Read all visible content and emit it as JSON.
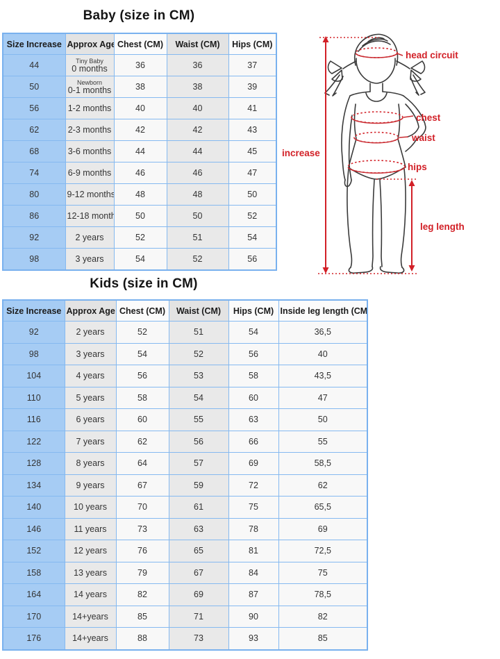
{
  "baby": {
    "title": "Baby (size in CM)",
    "headers": [
      "Size Increase",
      "Approx Age",
      "Chest (CM)",
      "Waist (CM)",
      "Hips (CM)"
    ],
    "rows": [
      {
        "size": "44",
        "age_small": "Tiny Baby",
        "age": "0 months",
        "chest": "36",
        "waist": "36",
        "hips": "37"
      },
      {
        "size": "50",
        "age_small": "Newborn",
        "age": "0-1 months",
        "chest": "38",
        "waist": "38",
        "hips": "39"
      },
      {
        "size": "56",
        "age_small": "",
        "age": "1-2 months",
        "chest": "40",
        "waist": "40",
        "hips": "41"
      },
      {
        "size": "62",
        "age_small": "",
        "age": "2-3 months",
        "chest": "42",
        "waist": "42",
        "hips": "43"
      },
      {
        "size": "68",
        "age_small": "",
        "age": "3-6 months",
        "chest": "44",
        "waist": "44",
        "hips": "45"
      },
      {
        "size": "74",
        "age_small": "",
        "age": "6-9 months",
        "chest": "46",
        "waist": "46",
        "hips": "47"
      },
      {
        "size": "80",
        "age_small": "",
        "age": "9-12 months",
        "chest": "48",
        "waist": "48",
        "hips": "50"
      },
      {
        "size": "86",
        "age_small": "",
        "age": "12-18 months",
        "chest": "50",
        "waist": "50",
        "hips": "52"
      },
      {
        "size": "92",
        "age_small": "",
        "age": "2 years",
        "chest": "52",
        "waist": "51",
        "hips": "54"
      },
      {
        "size": "98",
        "age_small": "",
        "age": "3 years",
        "chest": "54",
        "waist": "52",
        "hips": "56"
      }
    ]
  },
  "kids": {
    "title": "Kids (size in CM)",
    "headers": [
      "Size Increase",
      "Approx Age",
      "Chest (CM)",
      "Waist (CM)",
      "Hips (CM)",
      "Inside leg length (CM)"
    ],
    "rows": [
      {
        "size": "92",
        "age": "2 years",
        "chest": "52",
        "waist": "51",
        "hips": "54",
        "inside_leg": "36,5"
      },
      {
        "size": "98",
        "age": "3 years",
        "chest": "54",
        "waist": "52",
        "hips": "56",
        "inside_leg": "40"
      },
      {
        "size": "104",
        "age": "4 years",
        "chest": "56",
        "waist": "53",
        "hips": "58",
        "inside_leg": "43,5"
      },
      {
        "size": "110",
        "age": "5 years",
        "chest": "58",
        "waist": "54",
        "hips": "60",
        "inside_leg": "47"
      },
      {
        "size": "116",
        "age": "6 years",
        "chest": "60",
        "waist": "55",
        "hips": "63",
        "inside_leg": "50"
      },
      {
        "size": "122",
        "age": "7 years",
        "chest": "62",
        "waist": "56",
        "hips": "66",
        "inside_leg": "55"
      },
      {
        "size": "128",
        "age": "8 years",
        "chest": "64",
        "waist": "57",
        "hips": "69",
        "inside_leg": "58,5"
      },
      {
        "size": "134",
        "age": "9 years",
        "chest": "67",
        "waist": "59",
        "hips": "72",
        "inside_leg": "62"
      },
      {
        "size": "140",
        "age": "10 years",
        "chest": "70",
        "waist": "61",
        "hips": "75",
        "inside_leg": "65,5"
      },
      {
        "size": "146",
        "age": "11 years",
        "chest": "73",
        "waist": "63",
        "hips": "78",
        "inside_leg": "69"
      },
      {
        "size": "152",
        "age": "12 years",
        "chest": "76",
        "waist": "65",
        "hips": "81",
        "inside_leg": "72,5"
      },
      {
        "size": "158",
        "age": "13 years",
        "chest": "79",
        "waist": "67",
        "hips": "84",
        "inside_leg": "75"
      },
      {
        "size": "164",
        "age": "14 years",
        "chest": "82",
        "waist": "69",
        "hips": "87",
        "inside_leg": "78,5"
      },
      {
        "size": "170",
        "age": "14+years",
        "chest": "85",
        "waist": "71",
        "hips": "90",
        "inside_leg": "82"
      },
      {
        "size": "176",
        "age": "14+years",
        "chest": "88",
        "waist": "73",
        "hips": "93",
        "inside_leg": "85"
      }
    ]
  },
  "diagram": {
    "labels": {
      "head_circuit": "head circuit",
      "chest": "chest",
      "waist": "waist",
      "increase": "increase",
      "hips": "hips",
      "leg_length": "leg length"
    }
  },
  "colors": {
    "accent_red": "#d22027",
    "column_blue": "#a6ccf4",
    "border_blue": "#79b1ee",
    "column_gray": "#e9e9e9",
    "column_white": "#f8f8f8"
  }
}
